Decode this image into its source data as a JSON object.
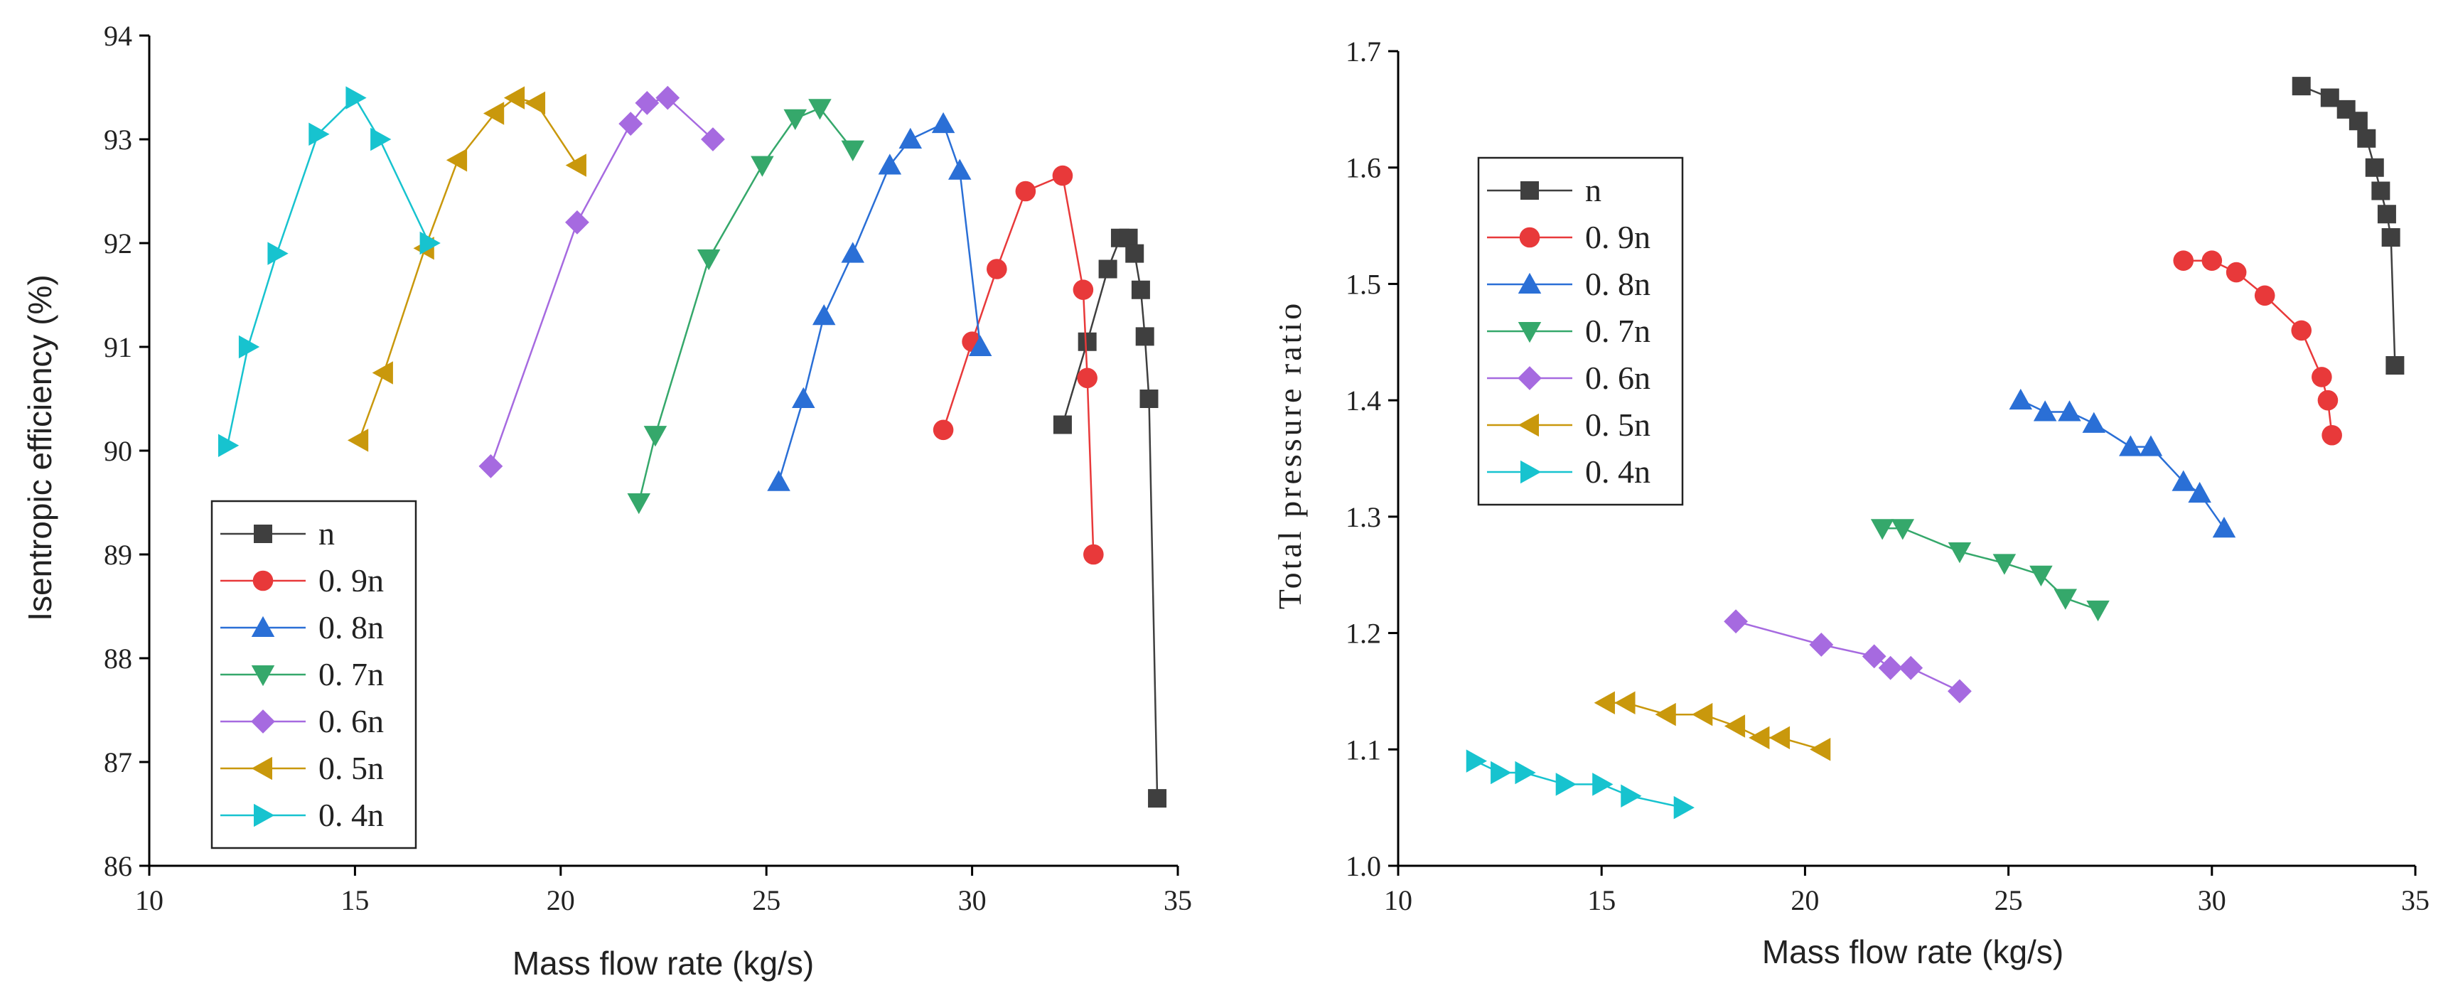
{
  "chart_data": [
    {
      "type": "line",
      "title": "",
      "xlabel": "Mass flow rate (kg/s)",
      "ylabel": "Isentropic efficiency (%)",
      "xlim": [
        10,
        35
      ],
      "ylim": [
        86,
        94
      ],
      "xticks": [
        "10",
        "15",
        "20",
        "25",
        "30",
        "35"
      ],
      "yticks": [
        "86",
        "87",
        "88",
        "89",
        "90",
        "91",
        "92",
        "93",
        "94"
      ],
      "legend_position": "bottom-left",
      "series": [
        {
          "name": "n",
          "color": "#3f3f3f",
          "marker": "square",
          "x": [
            32.2,
            32.8,
            33.3,
            33.6,
            33.8,
            33.95,
            34.1,
            34.2,
            34.3,
            34.5
          ],
          "y": [
            90.25,
            91.05,
            91.75,
            92.05,
            92.05,
            91.9,
            91.55,
            91.1,
            90.5,
            86.65
          ]
        },
        {
          "name": "0.9n",
          "color": "#e8393a",
          "marker": "circle",
          "x": [
            29.3,
            30.0,
            30.6,
            31.3,
            32.2,
            32.7,
            32.8,
            32.95
          ],
          "y": [
            90.2,
            91.05,
            91.75,
            92.5,
            92.65,
            91.55,
            90.7,
            89.0
          ]
        },
        {
          "name": "0.8n",
          "color": "#2a6fd6",
          "marker": "triangle-up",
          "x": [
            25.3,
            25.9,
            26.4,
            27.1,
            28.0,
            28.5,
            29.3,
            29.7,
            30.2
          ],
          "y": [
            89.7,
            90.5,
            91.3,
            91.9,
            92.75,
            93.0,
            93.15,
            92.7,
            91.0
          ]
        },
        {
          "name": "0.7n",
          "color": "#35a86b",
          "marker": "triangle-down",
          "x": [
            21.9,
            22.3,
            23.6,
            24.9,
            25.7,
            26.3,
            27.1
          ],
          "y": [
            89.5,
            90.15,
            91.85,
            92.75,
            93.2,
            93.3,
            92.9
          ]
        },
        {
          "name": "0.6n",
          "color": "#a66ae0",
          "marker": "diamond",
          "x": [
            18.3,
            20.4,
            21.7,
            22.1,
            22.6,
            23.7
          ],
          "y": [
            89.85,
            92.2,
            93.15,
            93.35,
            93.4,
            93.0
          ]
        },
        {
          "name": "0.5n",
          "color": "#c9980c",
          "marker": "triangle-left",
          "x": [
            15.1,
            15.7,
            16.7,
            17.5,
            18.4,
            18.9,
            19.4,
            20.4
          ],
          "y": [
            90.1,
            90.75,
            91.95,
            92.8,
            93.25,
            93.4,
            93.35,
            92.75
          ]
        },
        {
          "name": "0.4n",
          "color": "#17c3cf",
          "marker": "triangle-right",
          "x": [
            11.9,
            12.4,
            13.1,
            14.1,
            15.0,
            15.6,
            16.8
          ],
          "y": [
            90.05,
            91.0,
            91.9,
            93.05,
            93.4,
            93.0,
            92.0
          ]
        }
      ]
    },
    {
      "type": "line",
      "title": "",
      "xlabel": "Mass flow rate (kg/s)",
      "ylabel": "Total pressure ratio",
      "xlim": [
        10,
        35
      ],
      "ylim": [
        1.0,
        1.7
      ],
      "xticks": [
        "10",
        "15",
        "20",
        "25",
        "30",
        "35"
      ],
      "yticks": [
        "1.0",
        "1.1",
        "1.2",
        "1.3",
        "1.4",
        "1.5",
        "1.6",
        "1.7"
      ],
      "legend_position": "top-left",
      "series": [
        {
          "name": "n",
          "color": "#3f3f3f",
          "marker": "square",
          "x": [
            32.2,
            32.9,
            33.3,
            33.6,
            33.8,
            34.0,
            34.15,
            34.3,
            34.4,
            34.5
          ],
          "y": [
            1.67,
            1.66,
            1.65,
            1.64,
            1.625,
            1.6,
            1.58,
            1.56,
            1.54,
            1.43
          ]
        },
        {
          "name": "0.9n",
          "color": "#e8393a",
          "marker": "circle",
          "x": [
            29.3,
            30.0,
            30.6,
            31.3,
            32.2,
            32.7,
            32.85,
            32.95
          ],
          "y": [
            1.52,
            1.52,
            1.51,
            1.49,
            1.46,
            1.42,
            1.4,
            1.37
          ]
        },
        {
          "name": "0.8n",
          "color": "#2a6fd6",
          "marker": "triangle-up",
          "x": [
            25.3,
            25.9,
            26.5,
            27.1,
            28.0,
            28.5,
            29.3,
            29.7,
            30.3
          ],
          "y": [
            1.4,
            1.39,
            1.39,
            1.38,
            1.36,
            1.36,
            1.33,
            1.32,
            1.29
          ]
        },
        {
          "name": "0.7n",
          "color": "#35a86b",
          "marker": "triangle-down",
          "x": [
            21.9,
            22.4,
            23.8,
            24.9,
            25.8,
            26.4,
            27.2
          ],
          "y": [
            1.29,
            1.29,
            1.27,
            1.26,
            1.25,
            1.23,
            1.22
          ]
        },
        {
          "name": "0.6n",
          "color": "#a66ae0",
          "marker": "diamond",
          "x": [
            18.3,
            20.4,
            21.7,
            22.1,
            22.6,
            23.8
          ],
          "y": [
            1.21,
            1.19,
            1.18,
            1.17,
            1.17,
            1.15
          ]
        },
        {
          "name": "0.5n",
          "color": "#c9980c",
          "marker": "triangle-left",
          "x": [
            15.1,
            15.6,
            16.6,
            17.5,
            18.3,
            18.9,
            19.4,
            20.4
          ],
          "y": [
            1.14,
            1.14,
            1.13,
            1.13,
            1.12,
            1.11,
            1.11,
            1.1
          ]
        },
        {
          "name": "0.4n",
          "color": "#17c3cf",
          "marker": "triangle-right",
          "x": [
            11.9,
            12.5,
            13.1,
            14.1,
            15.0,
            15.7,
            17.0
          ],
          "y": [
            1.09,
            1.08,
            1.08,
            1.07,
            1.07,
            1.06,
            1.05
          ]
        }
      ]
    }
  ],
  "legend_labels": [
    "n",
    "0. 9n",
    "0. 8n",
    "0. 7n",
    "0. 6n",
    "0. 5n",
    "0. 4n"
  ]
}
